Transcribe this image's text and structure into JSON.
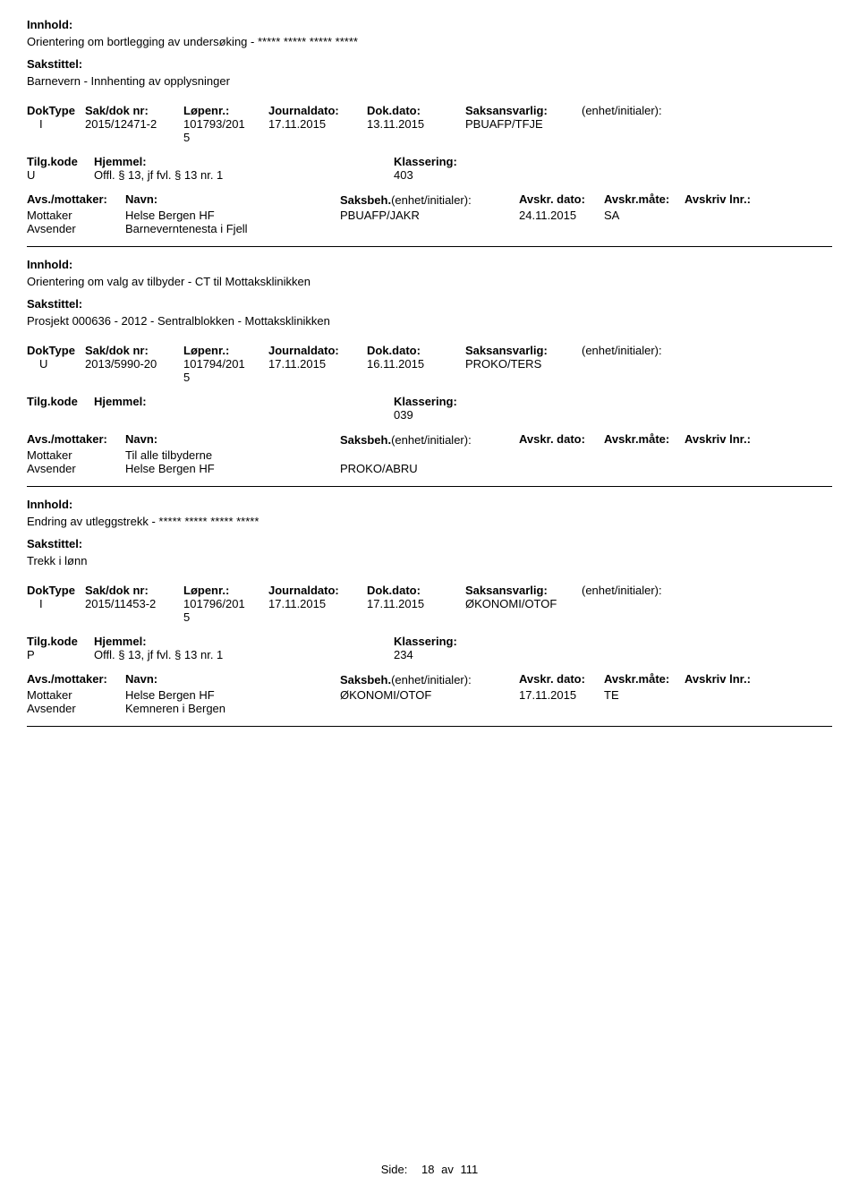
{
  "labels": {
    "innhold": "Innhold:",
    "sakstittel": "Sakstittel:",
    "doktype": "DokType",
    "sakdok": "Sak/dok nr:",
    "lopenr": "Løpenr.:",
    "journaldato": "Journaldato:",
    "dokdato": "Dok.dato:",
    "saksansvarlig": "Saksansvarlig:",
    "enhet": "(enhet/initialer):",
    "tilgkode": "Tilg.kode",
    "hjemmel": "Hjemmel:",
    "klassering": "Klassering:",
    "avsmottaker": "Avs./mottaker:",
    "navn": "Navn:",
    "saksbeh": "Saksbeh.",
    "saksbeh_enhet": "(enhet/initialer):",
    "avskrdato": "Avskr. dato:",
    "avskrmate": "Avskr.måte:",
    "avskrlnr": "Avskriv lnr.:",
    "mottaker": "Mottaker",
    "avsender": "Avsender",
    "side": "Side:",
    "av": "av"
  },
  "records": [
    {
      "innhold": "Orientering om bortlegging av undersøking - ***** ***** ***** *****",
      "sakstittel": "Barnevern - Innhenting av opplysninger",
      "doktype": "I",
      "sakdok": "2015/12471-2",
      "lopenr_line1": "101793/201",
      "lopenr_line2": "5",
      "journaldato": "17.11.2015",
      "dokdato": "13.11.2015",
      "saksansvarlig": "PBUAFP/TFJE",
      "tilgkode": "U",
      "hjemmel": "Offl. § 13, jf fvl. § 13 nr. 1",
      "klassering": "403",
      "parties": [
        {
          "role": "Mottaker",
          "navn": "Helse Bergen HF",
          "saksbeh": "PBUAFP/JAKR",
          "avskrdato": "24.11.2015",
          "avskrmate": "SA"
        },
        {
          "role": "Avsender",
          "navn": "Barneverntenesta i Fjell",
          "saksbeh": "",
          "avskrdato": "",
          "avskrmate": ""
        }
      ]
    },
    {
      "innhold": "Orientering om valg av tilbyder - CT til Mottaksklinikken",
      "sakstittel": "Prosjekt 000636 - 2012 - Sentralblokken - Mottaksklinikken",
      "doktype": "U",
      "sakdok": "2013/5990-20",
      "lopenr_line1": "101794/201",
      "lopenr_line2": "5",
      "journaldato": "17.11.2015",
      "dokdato": "16.11.2015",
      "saksansvarlig": "PROKO/TERS",
      "tilgkode": "",
      "hjemmel": "",
      "klassering": "039",
      "parties": [
        {
          "role": "Mottaker",
          "navn": "Til alle tilbyderne",
          "saksbeh": "",
          "avskrdato": "",
          "avskrmate": ""
        },
        {
          "role": "Avsender",
          "navn": "Helse Bergen HF",
          "saksbeh": "PROKO/ABRU",
          "avskrdato": "",
          "avskrmate": ""
        }
      ]
    },
    {
      "innhold": "Endring av utleggstrekk - ***** ***** ***** *****",
      "sakstittel": "Trekk i lønn",
      "doktype": "I",
      "sakdok": "2015/11453-2",
      "lopenr_line1": "101796/201",
      "lopenr_line2": "5",
      "journaldato": "17.11.2015",
      "dokdato": "17.11.2015",
      "saksansvarlig": "ØKONOMI/OTOF",
      "tilgkode": "P",
      "hjemmel": "Offl. § 13, jf fvl. § 13 nr. 1",
      "klassering": "234",
      "parties": [
        {
          "role": "Mottaker",
          "navn": "Helse Bergen HF",
          "saksbeh": "ØKONOMI/OTOF",
          "avskrdato": "17.11.2015",
          "avskrmate": "TE"
        },
        {
          "role": "Avsender",
          "navn": "Kemneren i Bergen",
          "saksbeh": "",
          "avskrdato": "",
          "avskrmate": ""
        }
      ]
    }
  ],
  "page": {
    "current": "18",
    "total": "111"
  }
}
